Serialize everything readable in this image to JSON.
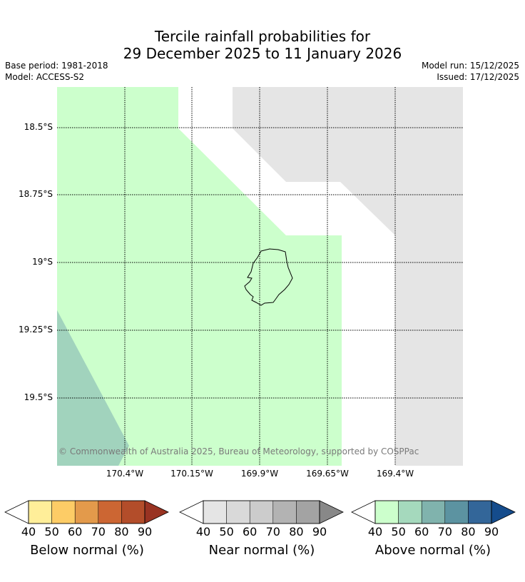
{
  "header": {
    "title_line1": "Tercile rainfall probabilities for",
    "title_line2": "29 December 2025 to 11 January 2026",
    "base_period": "Base period: 1981-2018",
    "model": "Model: ACCESS-S2",
    "model_run": "Model run: 15/12/2025",
    "issued": "Issued: 17/12/2025"
  },
  "map": {
    "lat_labels": [
      "18.5°S",
      "18.75°S",
      "19°S",
      "19.25°S",
      "19.5°S"
    ],
    "lon_labels": [
      "170.4°W",
      "170.15°W",
      "169.9°W",
      "169.65°W",
      "169.4°W"
    ],
    "copyright": "© Commonwealth of Australia 2025, Bureau of Meteorology, supported by COSPPac",
    "colors": {
      "above_40": "#ccffcc",
      "above_50": "#a1d3bd",
      "near_40": "#e5e5e5",
      "coast": "#000000",
      "grid": "#000000"
    }
  },
  "colorbars": [
    {
      "title": "Below normal (%)",
      "ticks": [
        "40",
        "50",
        "60",
        "70",
        "80",
        "90"
      ],
      "colors": [
        "#ffee99",
        "#fdcc66",
        "#e39a4b",
        "#cc6633",
        "#b34d2a",
        "#993322"
      ]
    },
    {
      "title": "Near normal (%)",
      "ticks": [
        "40",
        "50",
        "60",
        "70",
        "80",
        "90"
      ],
      "colors": [
        "#e5e5e5",
        "#d9d9d9",
        "#cccccc",
        "#b3b3b3",
        "#a3a3a3",
        "#888888"
      ]
    },
    {
      "title": "Above normal (%)",
      "ticks": [
        "40",
        "50",
        "60",
        "70",
        "80",
        "90"
      ],
      "colors": [
        "#ccffcc",
        "#a5d9bd",
        "#80b3ad",
        "#5c93a1",
        "#336699",
        "#154c8c"
      ]
    }
  ]
}
